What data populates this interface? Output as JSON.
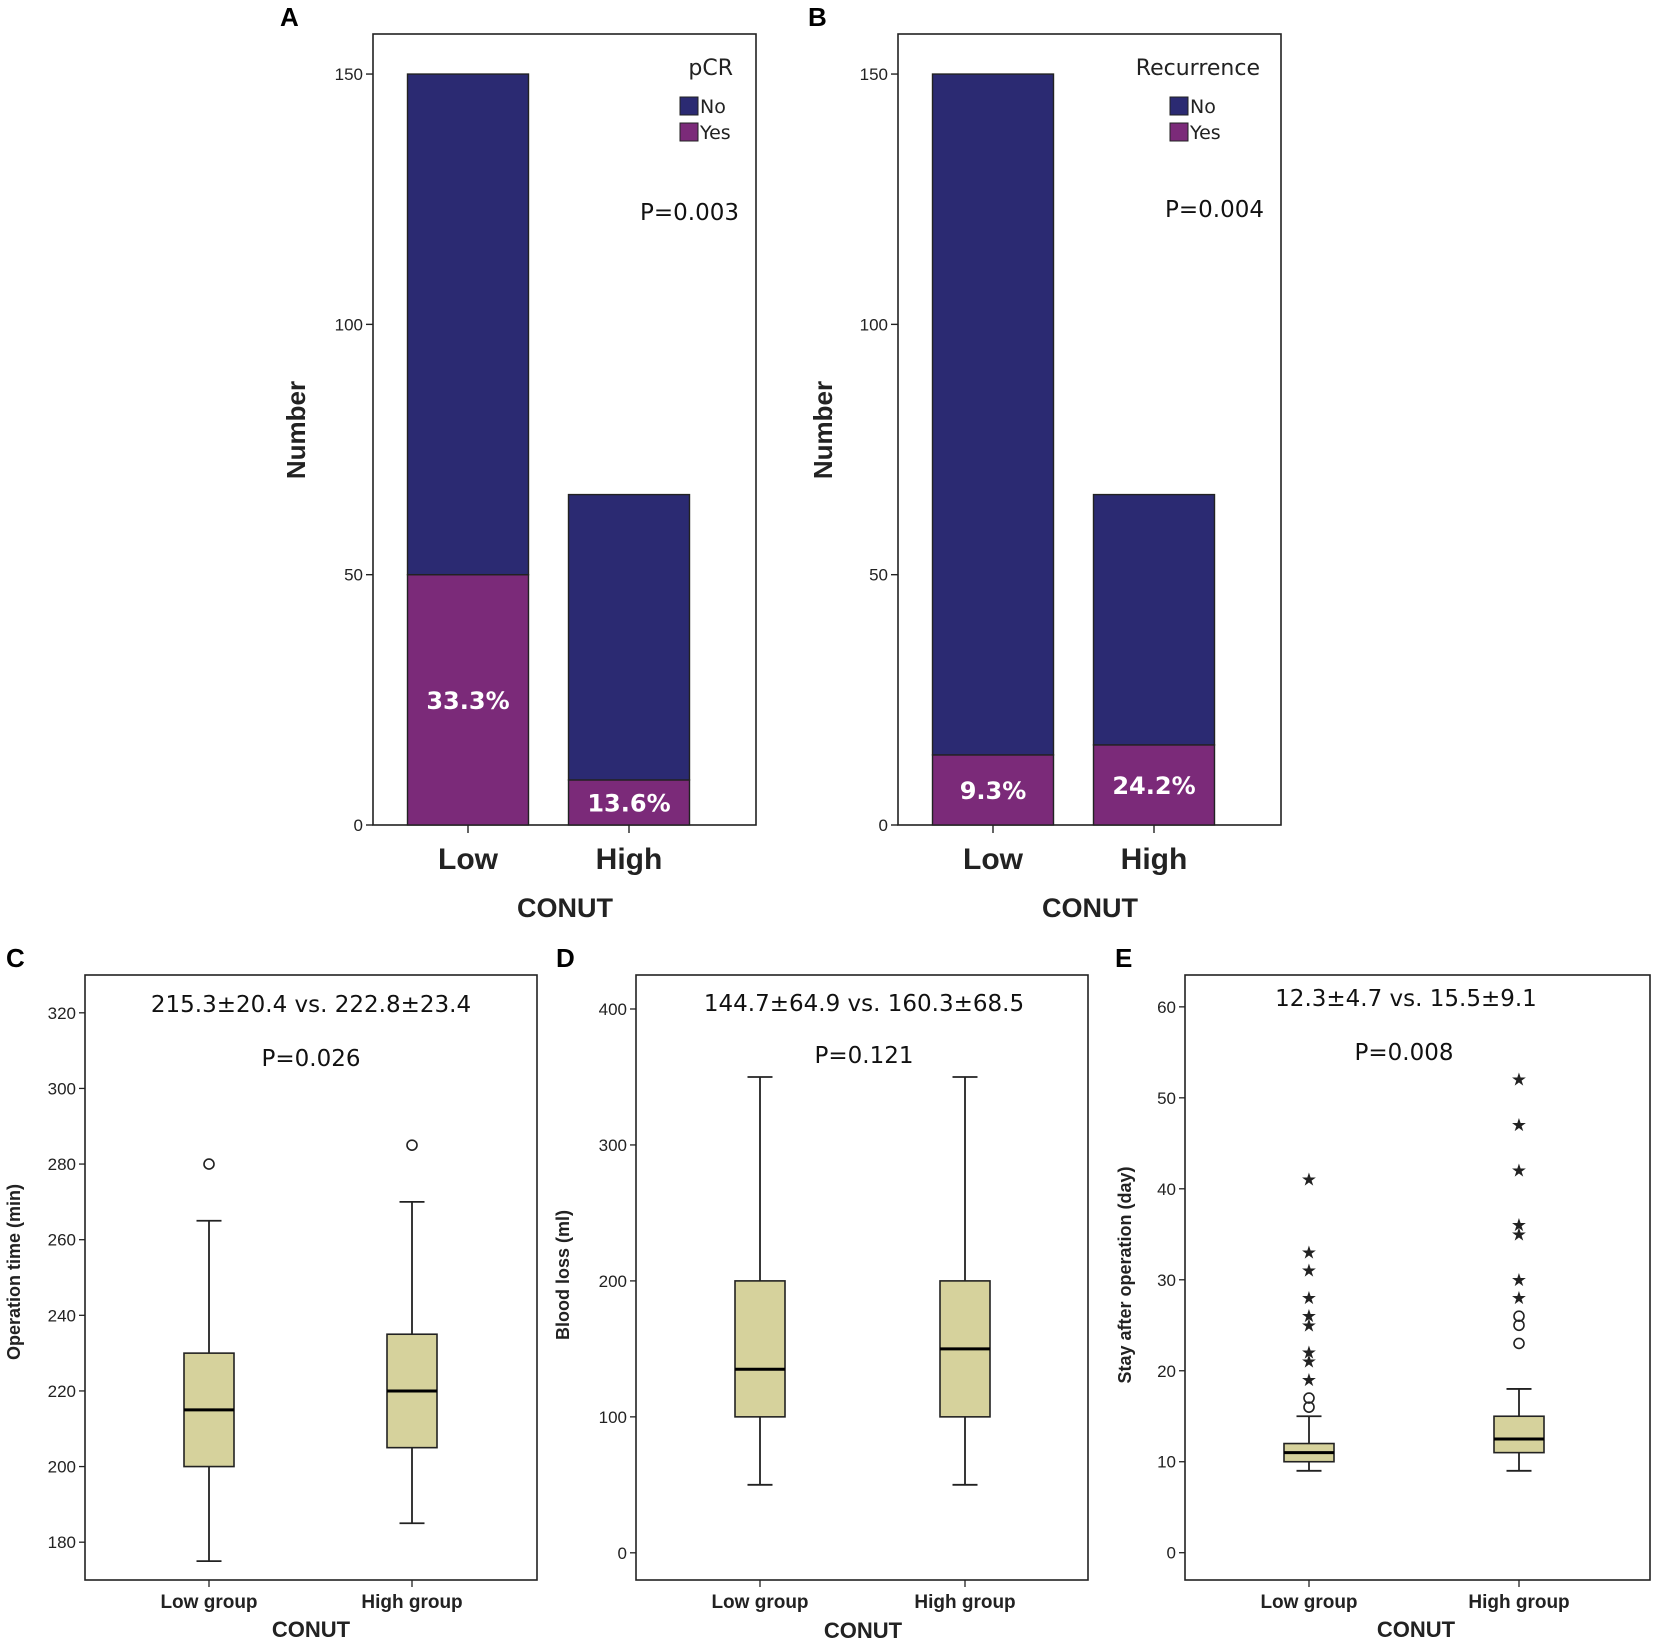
{
  "colors": {
    "no": "#2b2a72",
    "yes": "#7b2a79",
    "box": "#d6d29c",
    "line": "#222222"
  },
  "chart_data": [
    {
      "panel": "A",
      "type": "bar",
      "stacked": true,
      "title": "",
      "xlabel": "CONUT",
      "ylabel": "Number",
      "categories": [
        "Low",
        "High"
      ],
      "yticks": [
        "0",
        "50",
        "100",
        "150"
      ],
      "ylim": [
        0,
        158
      ],
      "legend": {
        "title": "pCR",
        "items": [
          "No",
          "Yes"
        ],
        "placement": "top-right"
      },
      "series": [
        {
          "name": "Yes",
          "values": [
            50,
            9
          ]
        },
        {
          "name": "No",
          "values": [
            100,
            57
          ]
        }
      ],
      "labels": [
        "33.3%",
        "13.6%"
      ],
      "pvalue": "P=0.003"
    },
    {
      "panel": "B",
      "type": "bar",
      "stacked": true,
      "title": "",
      "xlabel": "CONUT",
      "ylabel": "Number",
      "categories": [
        "Low",
        "High"
      ],
      "yticks": [
        "0",
        "50",
        "100",
        "150"
      ],
      "ylim": [
        0,
        158
      ],
      "legend": {
        "title": "Recurrence",
        "items": [
          "No",
          "Yes"
        ],
        "placement": "top-right"
      },
      "series": [
        {
          "name": "Yes",
          "values": [
            14,
            16
          ]
        },
        {
          "name": "No",
          "values": [
            136,
            50
          ]
        }
      ],
      "labels": [
        "9.3%",
        "24.2%"
      ],
      "pvalue": "P=0.004"
    },
    {
      "panel": "C",
      "type": "box",
      "xlabel": "CONUT",
      "ylabel": "Operation time (min)",
      "categories": [
        "Low group",
        "High group"
      ],
      "yticks": [
        "180",
        "200",
        "220",
        "240",
        "260",
        "280",
        "300",
        "320"
      ],
      "ylim": [
        170,
        330
      ],
      "annotation": "215.3±20.4 vs. 222.8±23.4",
      "pvalue": "P=0.026",
      "boxes": [
        {
          "min": 175,
          "q1": 200,
          "median": 215,
          "q3": 230,
          "max": 265,
          "outliers_circle": [
            280
          ],
          "outliers_star": []
        },
        {
          "min": 185,
          "q1": 205,
          "median": 220,
          "q3": 235,
          "max": 270,
          "outliers_circle": [
            285
          ],
          "outliers_star": []
        }
      ]
    },
    {
      "panel": "D",
      "type": "box",
      "xlabel": "CONUT",
      "ylabel": "Blood loss (ml)",
      "categories": [
        "Low group",
        "High group"
      ],
      "yticks": [
        "0",
        "100",
        "200",
        "300",
        "400"
      ],
      "ylim": [
        -20,
        425
      ],
      "annotation": "144.7±64.9 vs. 160.3±68.5",
      "pvalue": "P=0.121",
      "boxes": [
        {
          "min": 50,
          "q1": 100,
          "median": 135,
          "q3": 200,
          "max": 350,
          "outliers_circle": [],
          "outliers_star": []
        },
        {
          "min": 50,
          "q1": 100,
          "median": 150,
          "q3": 200,
          "max": 350,
          "outliers_circle": [],
          "outliers_star": []
        }
      ]
    },
    {
      "panel": "E",
      "type": "box",
      "xlabel": "CONUT",
      "ylabel": "Stay after operation (day)",
      "categories": [
        "Low group",
        "High group"
      ],
      "yticks": [
        "0",
        "10",
        "20",
        "30",
        "40",
        "50",
        "60"
      ],
      "ylim": [
        -3,
        63.5
      ],
      "annotation": "12.3±4.7 vs. 15.5±9.1",
      "pvalue": "P=0.008",
      "boxes": [
        {
          "min": 9,
          "q1": 10,
          "median": 11,
          "q3": 12,
          "max": 15,
          "outliers_circle": [
            16,
            17
          ],
          "outliers_star": [
            19,
            21,
            22,
            25,
            26,
            28,
            31,
            33,
            41
          ]
        },
        {
          "min": 9,
          "q1": 11,
          "median": 12.5,
          "q3": 15,
          "max": 18,
          "outliers_circle": [
            23,
            25,
            26
          ],
          "outliers_star": [
            28,
            30,
            35,
            36,
            42,
            47,
            52
          ]
        }
      ]
    }
  ]
}
